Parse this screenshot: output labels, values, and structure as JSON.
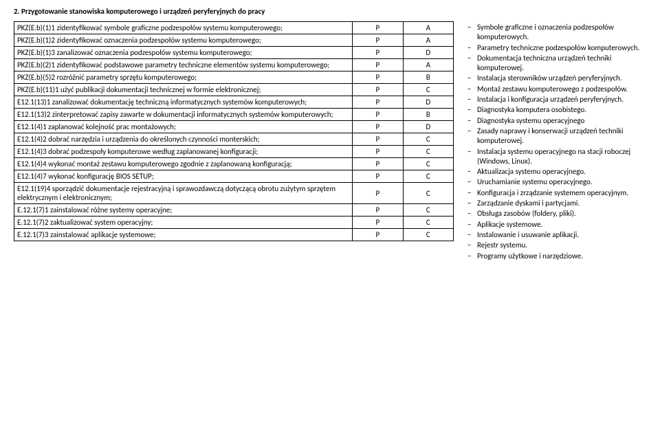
{
  "section_title": "2. Przygotowanie stanowiska komputerowego i urządzeń peryferyjnych do pracy",
  "rows": [
    {
      "desc": "PKZ(E.b)(1)1 zidentyfikować symbole graficzne podzespołów systemu komputerowego;",
      "c1": "P",
      "c2": "A"
    },
    {
      "desc": "PKZ(E.b)(1)2 zidentyfikować oznaczenia podzespołów systemu komputerowego;",
      "c1": "P",
      "c2": "A"
    },
    {
      "desc": "PKZ(E.b)(1)3 zanalizować oznaczenia podzespołów systemu komputerowego;",
      "c1": "P",
      "c2": "D"
    },
    {
      "desc": "PKZ(E.b)(2)1 zidentyfikować podstawowe parametry techniczne elementów systemu komputerowego;",
      "c1": "P",
      "c2": "A"
    },
    {
      "desc": "PKZ(E.b)(5)2 rozróżnić parametry sprzętu komputerowego;",
      "c1": "P",
      "c2": "B"
    },
    {
      "desc": "PKZ(E.b)(11)1 użyć publikacji dokumentacji technicznej w formie elektronicznej;",
      "c1": "P",
      "c2": "C"
    },
    {
      "desc": "E12.1(13)1 zanalizować dokumentację techniczną informatycznych systemów komputerowych;",
      "c1": "P",
      "c2": "D"
    },
    {
      "desc": "E12.1(13)2 zinterpretować zapisy zawarte w dokumentacji informatycznych systemów komputerowych;",
      "c1": "P",
      "c2": "B"
    },
    {
      "desc": "E12.1(4)1 zaplanować kolejność prac montażowych;",
      "c1": "P",
      "c2": "D"
    },
    {
      "desc": "E12.1(4)2 dobrać narzędzia i urządzenia do określonych czynności monterskich;",
      "c1": "P",
      "c2": "C"
    },
    {
      "desc": "E12.1(4)3 dobrać podzespoły komputerowe według zaplanowanej konfiguracji;",
      "c1": "P",
      "c2": "C"
    },
    {
      "desc": "E12.1(4)4 wykonać montaż zestawu komputerowego zgodnie z zaplanowaną konfiguracją;",
      "c1": "P",
      "c2": "C"
    },
    {
      "desc": "E12.1(4)7 wykonać konfigurację BIOS SETUP;",
      "c1": "P",
      "c2": "C"
    },
    {
      "desc": "E12.1(19)4 sporządzić dokumentacje rejestracyjną i sprawozdawczą dotyczącą obrotu zużytym sprzętem elektrycznym i elektronicznym;",
      "c1": "P",
      "c2": "C"
    },
    {
      "desc": "E.12.1(7)1 zainstalować różne systemy operacyjne;",
      "c1": "P",
      "c2": "C"
    },
    {
      "desc": "E.12.1(7)2 zaktualizować system operacyjny;",
      "c1": "P",
      "c2": "C"
    },
    {
      "desc": "E.12.1(7)3 zainstalować aplikacje systemowe;",
      "c1": "P",
      "c2": "C"
    }
  ],
  "right_items": [
    "Symbole graficzne i oznaczenia podzespołów komputerowych.",
    "Parametry techniczne podzespołów komputerowych.",
    "Dokumentacja techniczna urządzeń techniki komputerowej.",
    "Instalacja sterowników urządzeń peryferyjnych.",
    "Montaż zestawu komputerowego z podzespołów.",
    "Instalacja i konfiguracja urządzeń peryferyjnych.",
    "Diagnostyka komputera osobistego.",
    "Diagnostyka systemu operacyjnego",
    "Zasady naprawy i konserwacji urządzeń techniki komputerowej.",
    "Instalacja systemu operacyjnego na stacji roboczej (Windows, Linux).",
    "Aktualizacja systemu operacyjnego.",
    "Uruchamianie systemu operacyjnego.",
    "Konfiguracja i zrządzanie systemem operacyjnym.",
    "Zarządzanie dyskami i partycjami.",
    "Obsługa zasobów (foldery, pliki).",
    "Aplikacje systemowe.",
    "Instalowanie i usuwanie aplikacji.",
    "Rejestr systemu.",
    "Programy użytkowe i narzędziowe."
  ]
}
